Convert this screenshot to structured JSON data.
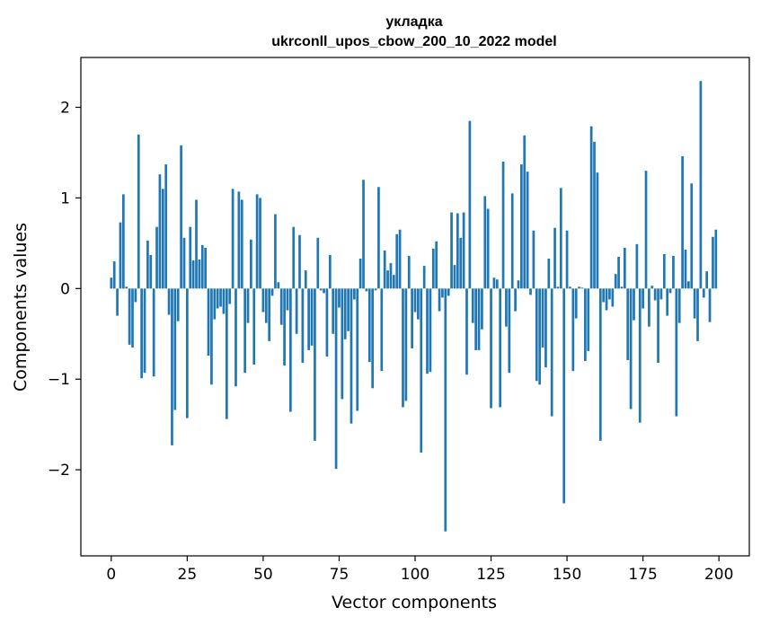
{
  "chart_data": {
    "type": "bar",
    "title": "укладка",
    "subtitle": "ukrconll_upos_cbow_200_10_2022 model",
    "xlabel": "Vector components",
    "ylabel": "Components values",
    "xlim": [
      -10,
      210
    ],
    "ylim": [
      -2.95,
      2.55
    ],
    "xticks": [
      0,
      25,
      50,
      75,
      100,
      125,
      150,
      175,
      200
    ],
    "yticks": [
      -2,
      -1,
      0,
      1,
      2
    ],
    "ytick_labels": [
      "−2",
      "−1",
      "0",
      "1",
      "2"
    ],
    "grid": false,
    "color": "#1f77b4",
    "x": [
      0,
      1,
      2,
      3,
      4,
      5,
      6,
      7,
      8,
      9,
      10,
      11,
      12,
      13,
      14,
      15,
      16,
      17,
      18,
      19,
      20,
      21,
      22,
      23,
      24,
      25,
      26,
      27,
      28,
      29,
      30,
      31,
      32,
      33,
      34,
      35,
      36,
      37,
      38,
      39,
      40,
      41,
      42,
      43,
      44,
      45,
      46,
      47,
      48,
      49,
      50,
      51,
      52,
      53,
      54,
      55,
      56,
      57,
      58,
      59,
      60,
      61,
      62,
      63,
      64,
      65,
      66,
      67,
      68,
      69,
      70,
      71,
      72,
      73,
      74,
      75,
      76,
      77,
      78,
      79,
      80,
      81,
      82,
      83,
      84,
      85,
      86,
      87,
      88,
      89,
      90,
      91,
      92,
      93,
      94,
      95,
      96,
      97,
      98,
      99,
      100,
      101,
      102,
      103,
      104,
      105,
      106,
      107,
      108,
      109,
      110,
      111,
      112,
      113,
      114,
      115,
      116,
      117,
      118,
      119,
      120,
      121,
      122,
      123,
      124,
      125,
      126,
      127,
      128,
      129,
      130,
      131,
      132,
      133,
      134,
      135,
      136,
      137,
      138,
      139,
      140,
      141,
      142,
      143,
      144,
      145,
      146,
      147,
      148,
      149,
      150,
      151,
      152,
      153,
      154,
      155,
      156,
      157,
      158,
      159,
      160,
      161,
      162,
      163,
      164,
      165,
      166,
      167,
      168,
      169,
      170,
      171,
      172,
      173,
      174,
      175,
      176,
      177,
      178,
      179,
      180,
      181,
      182,
      183,
      184,
      185,
      186,
      187,
      188,
      189,
      190,
      191,
      192,
      193,
      194,
      195,
      196,
      197,
      198,
      199
    ],
    "values": [
      0.12,
      0.3,
      -0.3,
      0.73,
      1.04,
      0.02,
      -0.62,
      -0.65,
      -0.15,
      1.7,
      -0.99,
      -0.93,
      0.53,
      0.37,
      -0.97,
      0.68,
      1.26,
      1.1,
      1.37,
      -0.29,
      -1.73,
      -1.34,
      -0.36,
      1.58,
      0.56,
      -1.43,
      0.68,
      0.31,
      0.98,
      0.32,
      0.48,
      0.45,
      -0.74,
      -1.06,
      -0.34,
      -0.22,
      -0.2,
      -0.28,
      -1.44,
      -0.17,
      1.1,
      -1.08,
      1.07,
      0.98,
      -0.93,
      -0.38,
      0.54,
      -0.84,
      1.04,
      1.0,
      -0.26,
      -0.38,
      -0.58,
      -0.08,
      0.82,
      0.07,
      -0.4,
      -0.85,
      -0.24,
      -1.36,
      0.68,
      -0.5,
      0.59,
      -0.82,
      0.2,
      -0.68,
      -0.63,
      -1.68,
      0.56,
      -0.02,
      -0.05,
      -0.75,
      0.37,
      -0.5,
      -1.99,
      -0.21,
      -1.22,
      -0.56,
      -0.47,
      -1.49,
      -0.12,
      -1.35,
      0.33,
      1.2,
      -0.03,
      -0.81,
      -1.1,
      -0.02,
      1.12,
      -0.91,
      0.42,
      0.2,
      0.28,
      0.15,
      0.6,
      0.65,
      -1.31,
      -1.24,
      0.36,
      -0.66,
      -0.26,
      -0.34,
      -1.81,
      0.25,
      -0.94,
      -0.92,
      0.44,
      0.52,
      -0.25,
      -0.1,
      -2.68,
      -0.08,
      0.84,
      0.26,
      0.83,
      0.56,
      0.84,
      -0.95,
      1.85,
      -0.38,
      -0.68,
      -0.68,
      -0.45,
      1.02,
      0.88,
      -1.32,
      0.12,
      0.1,
      -1.31,
      1.4,
      -0.42,
      -0.93,
      1.05,
      -0.25,
      0.09,
      1.37,
      1.69,
      1.29,
      -0.07,
      0.64,
      -1.02,
      -1.06,
      -0.65,
      -0.87,
      0.33,
      -1.41,
      0.67,
      0.02,
      1.11,
      -2.37,
      0.64,
      0.02,
      -0.91,
      -0.33,
      0.02,
      0.01,
      -0.8,
      -0.69,
      1.79,
      1.62,
      1.28,
      -1.68,
      -0.15,
      -0.24,
      -0.12,
      -0.2,
      0.16,
      0.35,
      0.02,
      0.45,
      -0.79,
      -1.33,
      -0.35,
      0.49,
      -1.48,
      -0.22,
      1.3,
      -0.42,
      0.03,
      -0.13,
      -0.82,
      -0.12,
      0.38,
      -0.3,
      -0.05,
      0.36,
      -1.41,
      -0.38,
      1.46,
      0.43,
      0.08,
      1.16,
      -0.33,
      -0.58,
      2.29,
      -0.1,
      0.19,
      -0.37,
      0.57,
      0.65
    ]
  }
}
